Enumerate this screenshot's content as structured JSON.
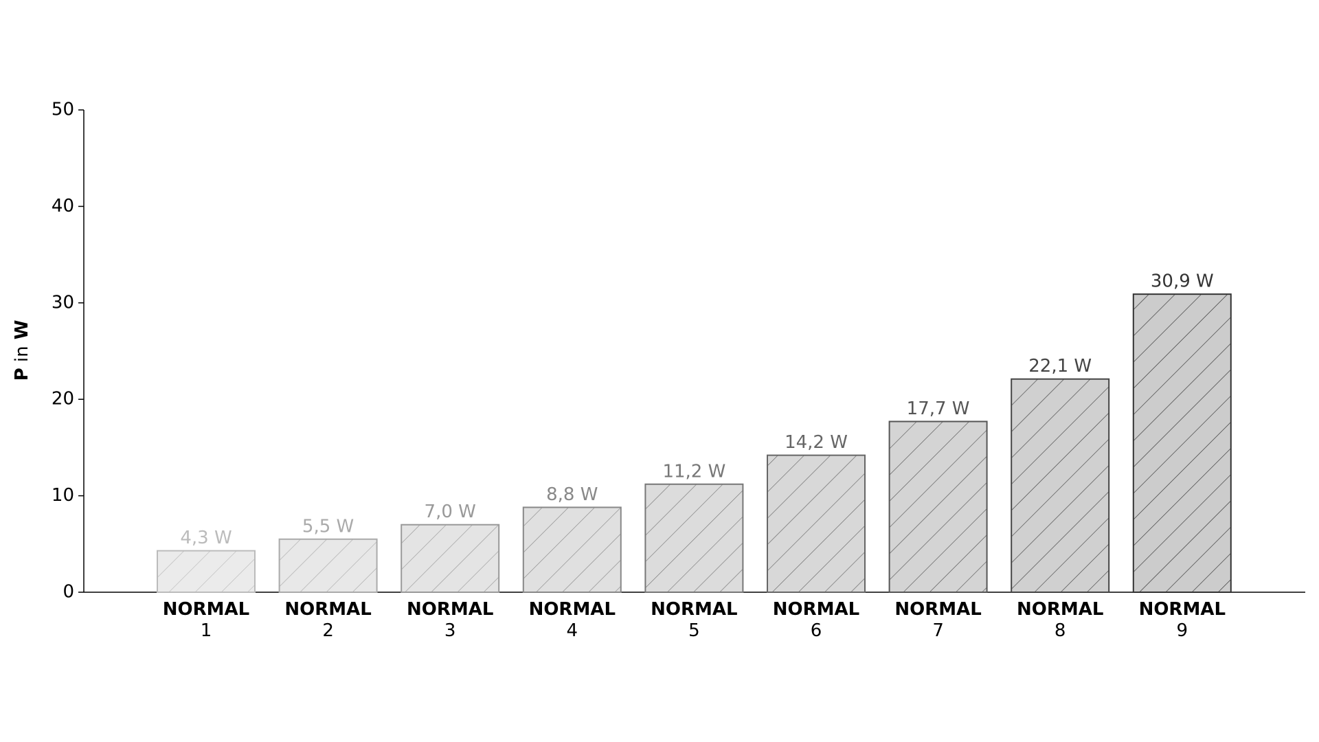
{
  "chart_data": {
    "type": "bar",
    "y_label": "P in W",
    "categories": [
      "NORMAL\n1",
      "NORMAL\n2",
      "NORMAL\n3",
      "NORMAL\n4",
      "NORMAL\n5",
      "NORMAL\n6",
      "NORMAL\n7",
      "NORMAL\n8",
      "NORMAL\n9"
    ],
    "values": [
      4.3,
      5.5,
      7.0,
      8.8,
      11.2,
      14.2,
      17.7,
      22.1,
      30.9
    ],
    "value_labels": [
      "4,3 W",
      "5,5 W",
      "7,0 W",
      "8,8 W",
      "11,2 W",
      "14,2 W",
      "17,7 W",
      "22,1 W",
      "30,9 W"
    ],
    "colors": [
      "#ebebeb",
      "#e8e8e8",
      "#e4e4e4",
      "#e0e0e0",
      "#dcdcdc",
      "#d8d8d8",
      "#d4d4d4",
      "#d0d0d0",
      "#cccccc"
    ],
    "edge_colors": [
      "#bbbbbb",
      "#aaaaaa",
      "#999999",
      "#888888",
      "#777777",
      "#666666",
      "#555555",
      "#444444",
      "#333333"
    ],
    "ylim": [
      0,
      50
    ],
    "yticks": [
      0,
      10,
      20,
      30,
      40,
      50
    ],
    "grid": false
  }
}
